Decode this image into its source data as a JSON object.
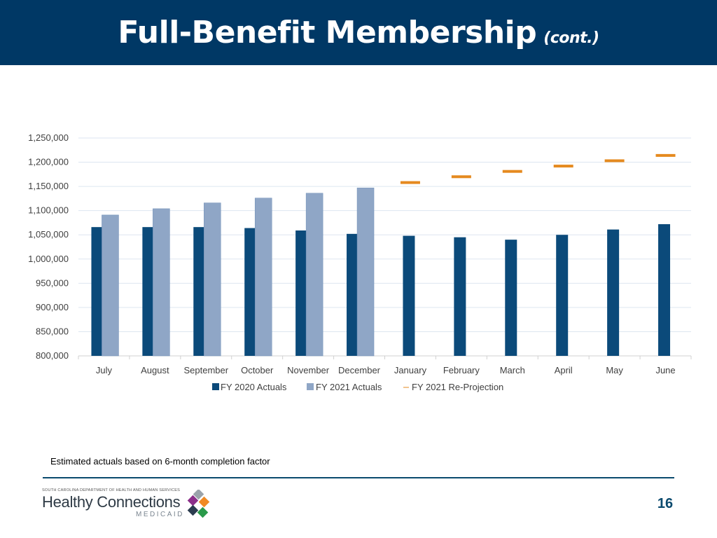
{
  "header": {
    "title": "Full-Benefit Membership",
    "title_suffix": "(cont.)"
  },
  "chart_data": {
    "type": "bar",
    "categories": [
      "July",
      "August",
      "September",
      "October",
      "November",
      "December",
      "January",
      "February",
      "March",
      "April",
      "May",
      "June"
    ],
    "y_tick_labels": [
      "800,000",
      "850,000",
      "900,000",
      "950,000",
      "1,000,000",
      "1,050,000",
      "1,100,000",
      "1,150,000",
      "1,200,000",
      "1,250,000"
    ],
    "ylim": [
      800000,
      1250000
    ],
    "grid": true,
    "legend_placement": "bottom",
    "series": [
      {
        "name": "FY 2020 Actuals",
        "kind": "bar",
        "color": "#0b4a7a",
        "values": [
          1066000,
          1066000,
          1066000,
          1064000,
          1059000,
          1052000,
          1048000,
          1045000,
          1040000,
          1050000,
          1061000,
          1072000
        ]
      },
      {
        "name": "FY 2021 Actuals",
        "kind": "bar",
        "color": "#8fa6c6",
        "values": [
          1091000,
          1104000,
          1116000,
          1126000,
          1136000,
          1147000,
          null,
          null,
          null,
          null,
          null,
          null
        ]
      },
      {
        "name": "FY 2021 Re-Projection",
        "kind": "marker",
        "color": "#e58a1f",
        "values": [
          null,
          null,
          null,
          null,
          null,
          null,
          1158000,
          1170000,
          1181000,
          1192000,
          1203000,
          1214000
        ]
      }
    ]
  },
  "footnote": "Estimated actuals based on 6-month completion factor",
  "footer": {
    "dept": "SOUTH CAROLINA DEPARTMENT OF HEALTH AND HUMAN SERVICES",
    "brand": "Healthy Connections",
    "brand_sub": "MEDICAID",
    "page_number": "16"
  }
}
